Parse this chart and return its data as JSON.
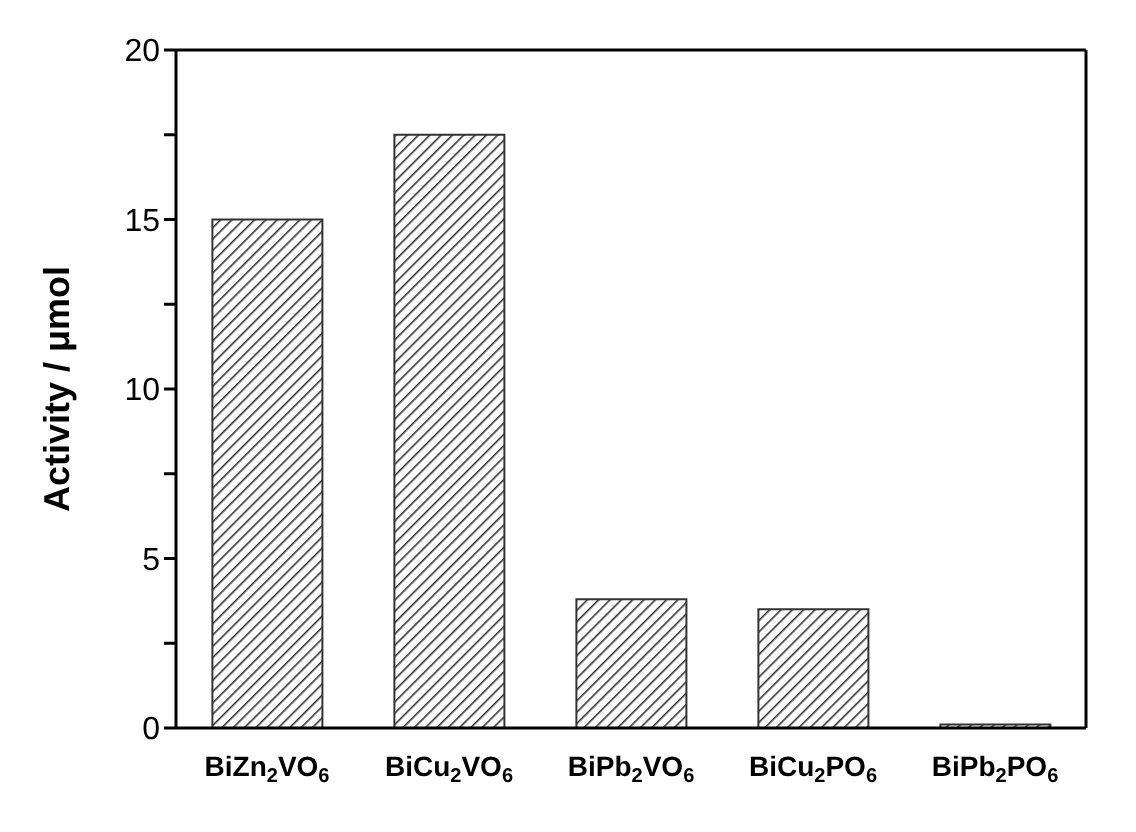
{
  "chart_data": {
    "type": "bar",
    "ylabel": "Activity / μmol",
    "categories": [
      "BiZn$_{2}$VO$_{6}$",
      "BiCu$_{2}$VO$_{6}$",
      "BiPb$_{2}$VO$_{6}$",
      "BiCu$_{2}$PO$_{6}$",
      "BiPb$_{2}$PO$_{6}$"
    ],
    "values": [
      15,
      17.5,
      3.8,
      3.5,
      0.1
    ],
    "color": "#333333",
    "ylim": [
      0,
      20
    ],
    "yticks": [
      0,
      {
        "value": 2.5,
        "label": null
      },
      5,
      {
        "value": 7.5,
        "label": null
      },
      10,
      {
        "value": 12.5,
        "label": null
      },
      15,
      {
        "value": 17.5,
        "label": null
      },
      20
    ],
    "grid": false,
    "legend": false
  }
}
